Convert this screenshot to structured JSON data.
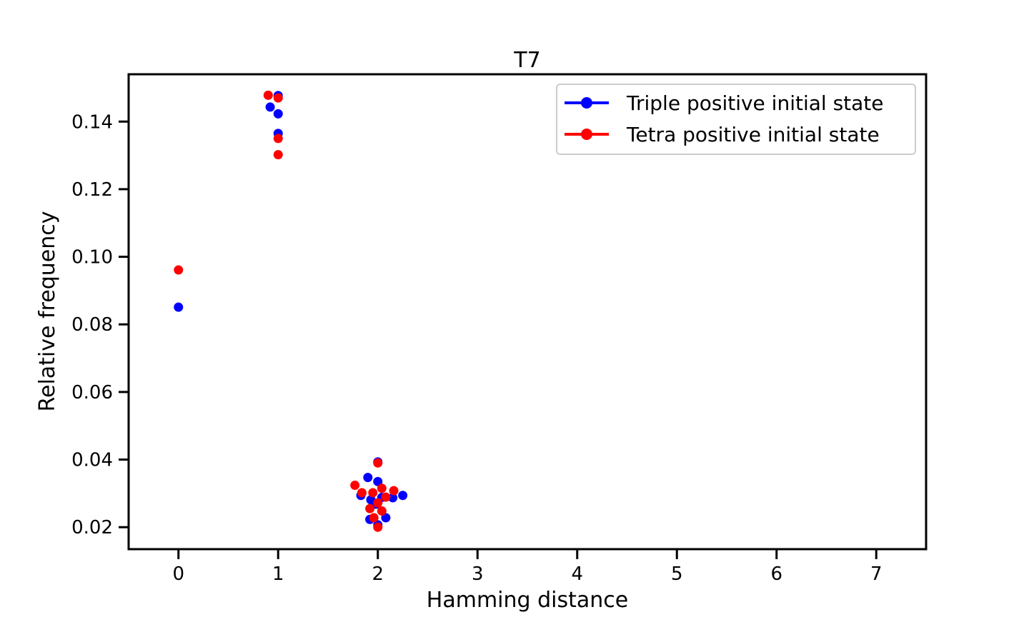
{
  "chart_data": {
    "type": "scatter",
    "title": "T7",
    "xlabel": "Hamming distance",
    "ylabel": "Relative frequency",
    "xlim": [
      -0.5,
      7.5
    ],
    "ylim": [
      0.0135,
      0.154
    ],
    "x_ticks": [
      "0",
      "1",
      "2",
      "3",
      "4",
      "5",
      "6",
      "7"
    ],
    "y_ticks": [
      "0.02",
      "0.04",
      "0.06",
      "0.08",
      "0.10",
      "0.12",
      "0.14"
    ],
    "grid": false,
    "legend_placement": "top-right",
    "series": [
      {
        "name": "Triple positive initial state",
        "color": "#0000ff",
        "points": [
          {
            "x": 0.0,
            "y": 0.0851
          },
          {
            "x": 0.92,
            "y": 0.1443
          },
          {
            "x": 1.0,
            "y": 0.1477
          },
          {
            "x": 1.0,
            "y": 0.1423
          },
          {
            "x": 1.0,
            "y": 0.1365
          },
          {
            "x": 1.83,
            "y": 0.0294
          },
          {
            "x": 1.9,
            "y": 0.0347
          },
          {
            "x": 1.92,
            "y": 0.0223
          },
          {
            "x": 1.93,
            "y": 0.0281
          },
          {
            "x": 1.98,
            "y": 0.0268
          },
          {
            "x": 2.0,
            "y": 0.0393
          },
          {
            "x": 2.0,
            "y": 0.0335
          },
          {
            "x": 2.0,
            "y": 0.0207
          },
          {
            "x": 2.04,
            "y": 0.0288
          },
          {
            "x": 2.08,
            "y": 0.0228
          },
          {
            "x": 2.15,
            "y": 0.0287
          },
          {
            "x": 2.25,
            "y": 0.0294
          }
        ]
      },
      {
        "name": "Tetra positive initial state",
        "color": "#ff0000",
        "points": [
          {
            "x": 0.0,
            "y": 0.0961
          },
          {
            "x": 0.9,
            "y": 0.1478
          },
          {
            "x": 1.0,
            "y": 0.147
          },
          {
            "x": 1.0,
            "y": 0.135
          },
          {
            "x": 1.0,
            "y": 0.1302
          },
          {
            "x": 1.77,
            "y": 0.0324
          },
          {
            "x": 1.84,
            "y": 0.0302
          },
          {
            "x": 1.92,
            "y": 0.0255
          },
          {
            "x": 1.95,
            "y": 0.0302
          },
          {
            "x": 1.96,
            "y": 0.0228
          },
          {
            "x": 2.0,
            "y": 0.039
          },
          {
            "x": 2.0,
            "y": 0.0272
          },
          {
            "x": 2.0,
            "y": 0.02
          },
          {
            "x": 2.04,
            "y": 0.0315
          },
          {
            "x": 2.04,
            "y": 0.0248
          },
          {
            "x": 2.08,
            "y": 0.0289
          },
          {
            "x": 2.16,
            "y": 0.0308
          }
        ]
      }
    ]
  }
}
